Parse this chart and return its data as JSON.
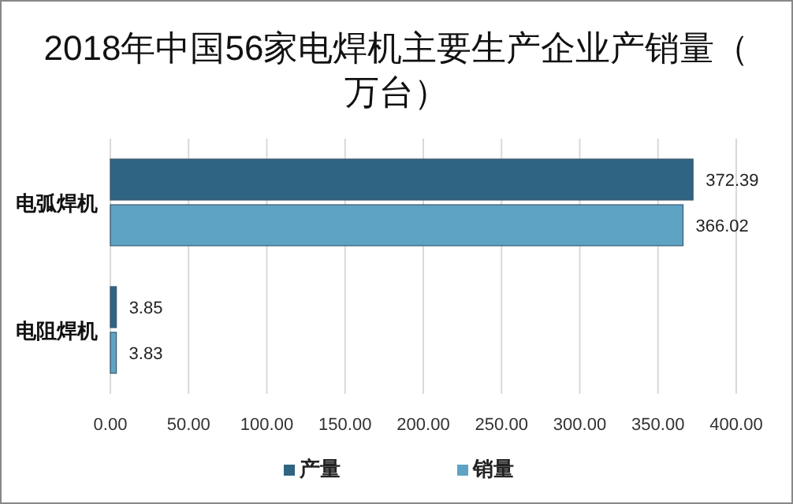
{
  "chart_data": {
    "type": "bar",
    "orientation": "horizontal",
    "title": "2018年中国56家电焊机主要生产企业产销量（万台）",
    "categories": [
      "电弧焊机",
      "电阻焊机"
    ],
    "series": [
      {
        "name": "产量",
        "color": "#2f6482",
        "values": [
          372.39,
          3.85
        ]
      },
      {
        "name": "销量",
        "color": "#5ea3c4",
        "values": [
          366.02,
          3.83
        ]
      }
    ],
    "xlim": [
      0,
      400
    ],
    "xticks": [
      {
        "value": 0,
        "label": "0.00"
      },
      {
        "value": 50,
        "label": "50.00"
      },
      {
        "value": 100,
        "label": "100.00"
      },
      {
        "value": 150,
        "label": "150.00"
      },
      {
        "value": 200,
        "label": "200.00"
      },
      {
        "value": 250,
        "label": "250.00"
      },
      {
        "value": 300,
        "label": "300.00"
      },
      {
        "value": 350,
        "label": "350.00"
      },
      {
        "value": 400,
        "label": "400.00"
      }
    ],
    "grid": "x",
    "legend": "bottom",
    "data_labels": true
  }
}
